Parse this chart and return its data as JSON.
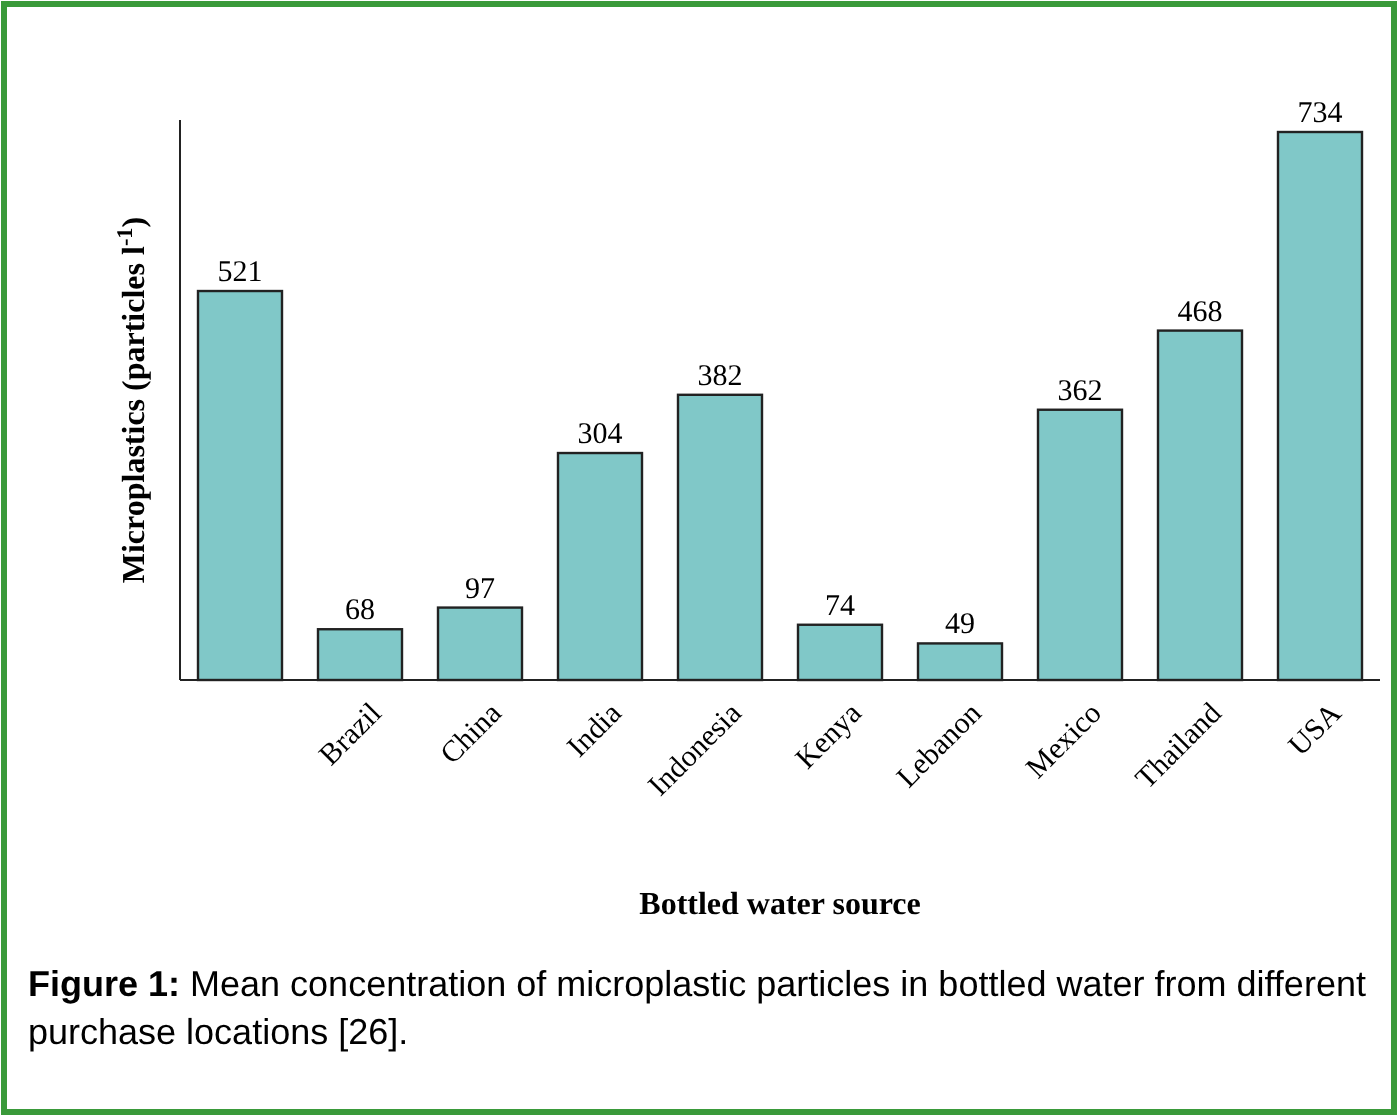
{
  "chart_data": {
    "type": "bar",
    "xlabel": "Bottled water source",
    "ylabel": "Microplastics (particles l$^{-1}$)",
    "categories": [
      null,
      "Brazil",
      "China",
      "India",
      "Indonesia",
      "Kenya",
      "Lebanon",
      "Mexico",
      "Thailand",
      "USA"
    ],
    "values": [
      521,
      68,
      97,
      304,
      382,
      74,
      49,
      362,
      468,
      734
    ],
    "color": "#80c8c8",
    "data_labels": true,
    "annotations": [
      "Figure 1: Mean concentration of microplastic particles in bottled water from different purchase locations [26]."
    ]
  }
}
